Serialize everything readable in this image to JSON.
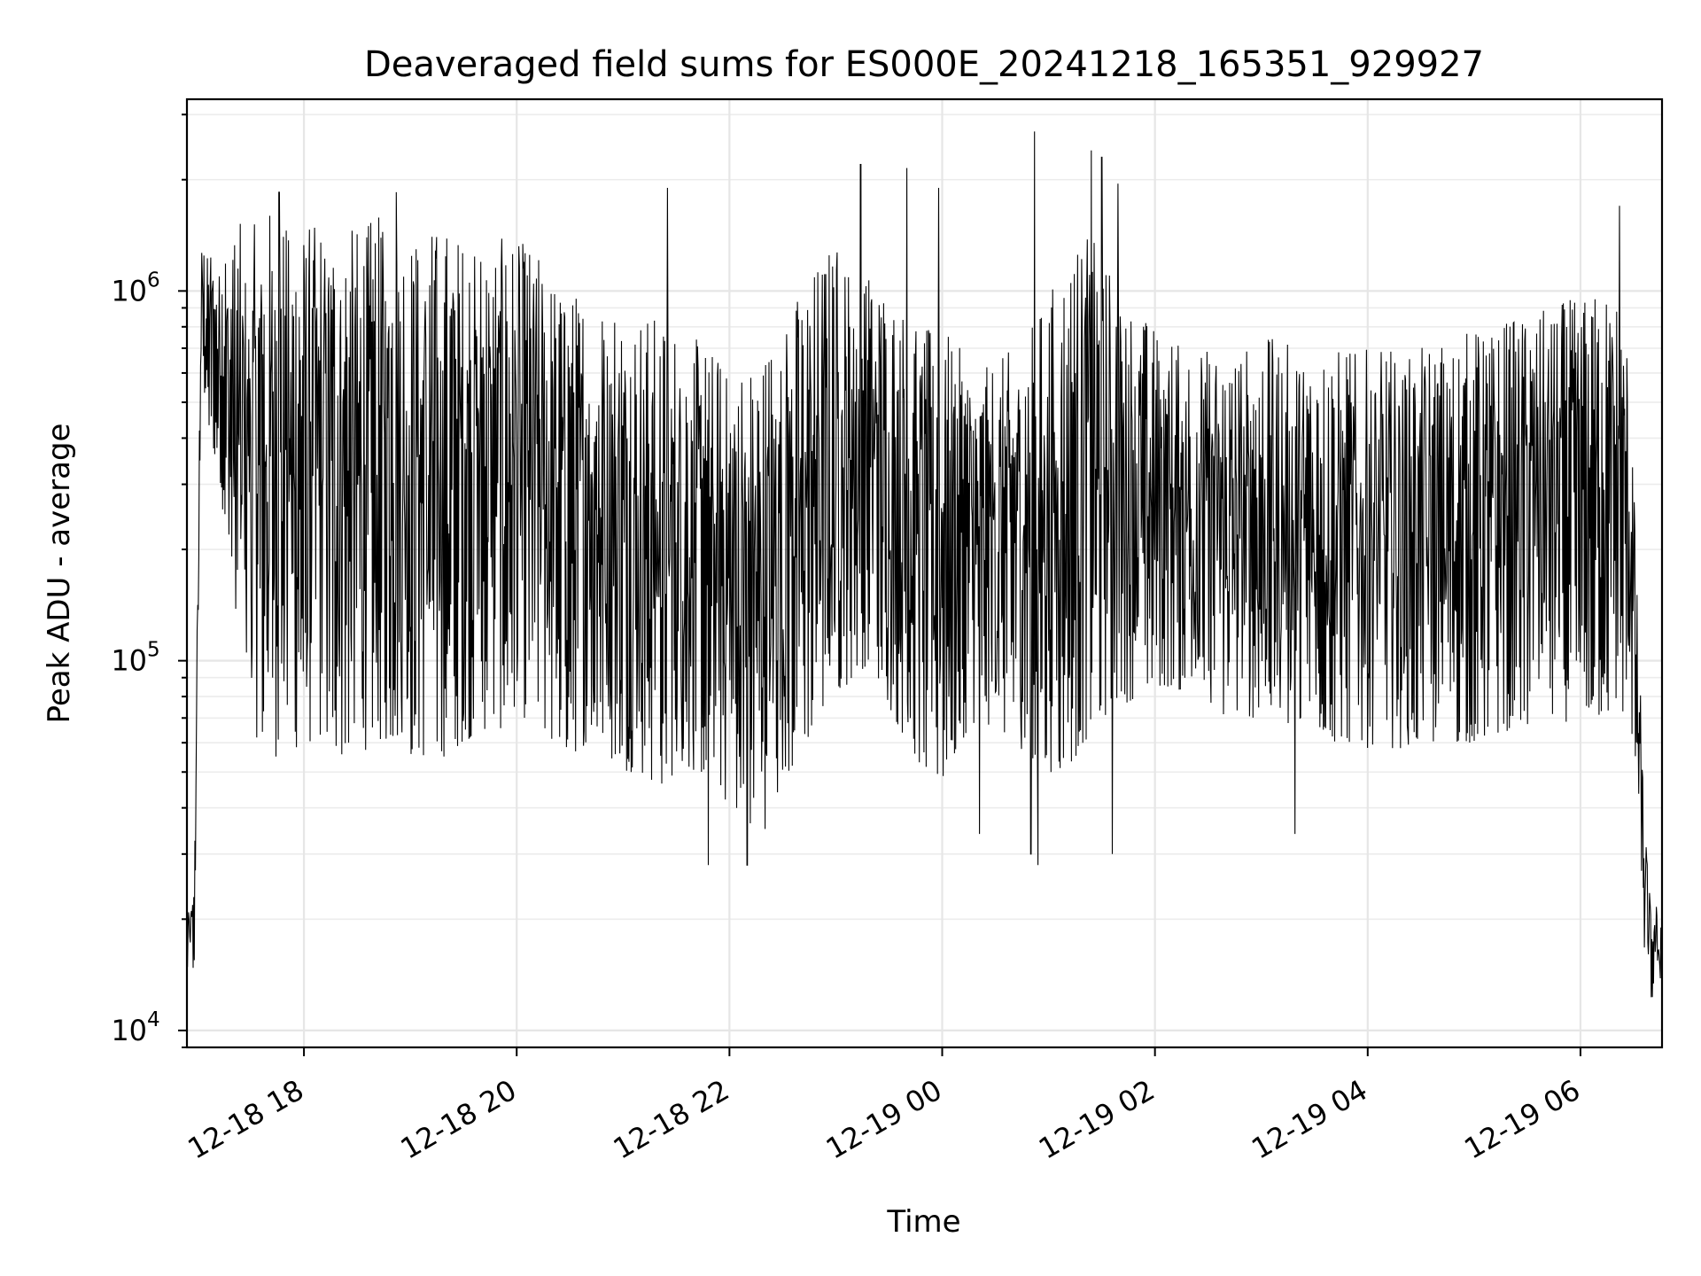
{
  "chart_data": {
    "type": "line",
    "title": "Deaveraged field sums for ES000E_20241218_165351_929927",
    "xlabel": "Time",
    "ylabel": "Peak ADU - average",
    "yscale": "log",
    "ylim": [
      9000,
      3300000
    ],
    "xlim": [
      "2024-12-18T16:54",
      "2024-12-19T06:46"
    ],
    "grid": true,
    "line_color": "#000000",
    "xticks": [
      {
        "value": "2024-12-18T18:00",
        "label": "12-18 18"
      },
      {
        "value": "2024-12-18T20:00",
        "label": "12-18 20"
      },
      {
        "value": "2024-12-18T22:00",
        "label": "12-18 22"
      },
      {
        "value": "2024-12-19T00:00",
        "label": "12-19 00"
      },
      {
        "value": "2024-12-19T02:00",
        "label": "12-19 02"
      },
      {
        "value": "2024-12-19T04:00",
        "label": "12-19 04"
      },
      {
        "value": "2024-12-19T06:00",
        "label": "12-19 06"
      }
    ],
    "yticks": [
      {
        "value": 10000,
        "base": "10",
        "exp": "4"
      },
      {
        "value": 100000,
        "base": "10",
        "exp": "5"
      },
      {
        "value": 1000000,
        "base": "10",
        "exp": "6"
      }
    ],
    "series": [
      {
        "x": [
          "2024-12-18T16:54",
          "2024-12-18T16:56",
          "2024-12-18T16:58",
          "2024-12-18T17:00",
          "2024-12-18T17:02",
          "2024-12-18T17:04",
          "2024-12-18T17:06",
          "2024-12-18T17:08",
          "2024-12-18T17:10",
          "2024-12-18T17:13",
          "2024-12-18T17:16",
          "2024-12-18T17:19",
          "2024-12-18T17:22",
          "2024-12-18T17:25",
          "2024-12-18T17:28",
          "2024-12-18T17:31",
          "2024-12-18T17:34",
          "2024-12-18T17:40",
          "2024-12-18T17:50",
          "2024-12-18T18:00",
          "2024-12-18T18:10",
          "2024-12-18T18:20",
          "2024-12-18T18:30",
          "2024-12-18T18:40",
          "2024-12-18T18:50",
          "2024-12-18T19:00",
          "2024-12-18T19:10",
          "2024-12-18T19:20",
          "2024-12-18T19:30",
          "2024-12-18T19:40",
          "2024-12-18T19:50",
          "2024-12-18T20:00",
          "2024-12-18T20:10",
          "2024-12-18T20:20",
          "2024-12-18T20:30",
          "2024-12-18T20:40",
          "2024-12-18T20:50",
          "2024-12-18T21:00",
          "2024-12-18T21:10",
          "2024-12-18T21:20",
          "2024-12-18T21:30",
          "2024-12-18T21:40",
          "2024-12-18T21:50",
          "2024-12-18T22:00",
          "2024-12-18T22:10",
          "2024-12-18T22:20",
          "2024-12-18T22:30",
          "2024-12-18T22:40",
          "2024-12-18T22:50",
          "2024-12-18T23:00",
          "2024-12-18T23:10",
          "2024-12-18T23:20",
          "2024-12-18T23:30",
          "2024-12-18T23:40",
          "2024-12-18T23:50",
          "2024-12-19T00:00",
          "2024-12-19T00:10",
          "2024-12-19T00:20",
          "2024-12-19T00:30",
          "2024-12-19T00:40",
          "2024-12-19T00:50",
          "2024-12-19T01:00",
          "2024-12-19T01:10",
          "2024-12-19T01:20",
          "2024-12-19T01:30",
          "2024-12-19T01:40",
          "2024-12-19T01:50",
          "2024-12-19T02:00",
          "2024-12-19T02:10",
          "2024-12-19T02:20",
          "2024-12-19T02:30",
          "2024-12-19T02:40",
          "2024-12-19T02:50",
          "2024-12-19T03:00",
          "2024-12-19T03:10",
          "2024-12-19T03:20",
          "2024-12-19T03:30",
          "2024-12-19T03:40",
          "2024-12-19T03:50",
          "2024-12-19T04:00",
          "2024-12-19T04:10",
          "2024-12-19T04:20",
          "2024-12-19T04:30",
          "2024-12-19T04:40",
          "2024-12-19T04:50",
          "2024-12-19T05:00",
          "2024-12-19T05:10",
          "2024-12-19T05:20",
          "2024-12-19T05:30",
          "2024-12-19T05:40",
          "2024-12-19T05:50",
          "2024-12-19T06:00",
          "2024-12-19T06:10",
          "2024-12-19T06:20",
          "2024-12-19T06:28",
          "2024-12-19T06:32",
          "2024-12-19T06:36",
          "2024-12-19T06:40",
          "2024-12-19T06:43",
          "2024-12-19T06:46"
        ],
        "y_high": [
          20000,
          22000,
          25000,
          160000,
          1300000,
          1400000,
          1200000,
          1500000,
          1100000,
          1300000,
          1500000,
          1400000,
          1600000,
          1500000,
          1400000,
          1500000,
          1600000,
          1700000,
          1600000,
          1500000,
          1600000,
          1600000,
          1500000,
          1600000,
          1600000,
          1500000,
          1500000,
          1500000,
          1400000,
          1400000,
          1400000,
          1400000,
          1300000,
          1100000,
          1000000,
          1000000,
          1000000,
          950000,
          900000,
          850000,
          800000,
          750000,
          700000,
          650000,
          650000,
          700000,
          900000,
          1000000,
          1200000,
          1400000,
          1100000,
          1200000,
          1000000,
          900000,
          800000,
          800000,
          700000,
          600000,
          650000,
          700000,
          800000,
          1000000,
          1200000,
          1500000,
          1300000,
          1000000,
          900000,
          800000,
          750000,
          750000,
          700000,
          700000,
          700000,
          750000,
          750000,
          700000,
          700000,
          700000,
          700000,
          700000,
          700000,
          700000,
          700000,
          750000,
          750000,
          800000,
          800000,
          850000,
          900000,
          900000,
          950000,
          950000,
          1000000,
          1000000,
          700000,
          150000,
          40000,
          20000,
          22000,
          20000
        ],
        "y_low": [
          14000,
          15000,
          13000,
          70000,
          600000,
          500000,
          400000,
          380000,
          350000,
          300000,
          200000,
          150000,
          100000,
          90000,
          80000,
          70000,
          60000,
          55000,
          55000,
          60000,
          60000,
          55000,
          55000,
          60000,
          60000,
          55000,
          55000,
          55000,
          60000,
          65000,
          65000,
          70000,
          70000,
          60000,
          55000,
          60000,
          55000,
          50000,
          50000,
          45000,
          50000,
          50000,
          48000,
          40000,
          35000,
          35000,
          45000,
          55000,
          70000,
          80000,
          90000,
          100000,
          75000,
          60000,
          50000,
          45000,
          60000,
          70000,
          65000,
          60000,
          55000,
          50000,
          50000,
          60000,
          70000,
          75000,
          80000,
          85000,
          85000,
          80000,
          75000,
          70000,
          70000,
          70000,
          65000,
          65000,
          65000,
          60000,
          60000,
          58000,
          58000,
          58000,
          58000,
          60000,
          60000,
          60000,
          62000,
          65000,
          65000,
          65000,
          68000,
          70000,
          70000,
          70000,
          70000,
          40000,
          16000,
          12000,
          13000,
          14000
        ]
      }
    ],
    "spikes": [
      {
        "x": "2024-12-18T17:46",
        "y": 1850000
      },
      {
        "x": "2024-12-18T18:52",
        "y": 1850000
      },
      {
        "x": "2024-12-18T21:25",
        "y": 1900000
      },
      {
        "x": "2024-12-18T21:48",
        "y": 28000
      },
      {
        "x": "2024-12-18T22:04",
        "y": 40000
      },
      {
        "x": "2024-12-18T22:10",
        "y": 28000
      },
      {
        "x": "2024-12-18T23:14",
        "y": 2200000
      },
      {
        "x": "2024-12-18T23:40",
        "y": 2150000
      },
      {
        "x": "2024-12-18T23:58",
        "y": 1900000
      },
      {
        "x": "2024-12-19T00:21",
        "y": 34000
      },
      {
        "x": "2024-12-19T00:50",
        "y": 30000
      },
      {
        "x": "2024-12-19T00:52",
        "y": 2700000
      },
      {
        "x": "2024-12-19T00:54",
        "y": 28000
      },
      {
        "x": "2024-12-19T01:24",
        "y": 2400000
      },
      {
        "x": "2024-12-19T01:30",
        "y": 2300000
      },
      {
        "x": "2024-12-19T01:36",
        "y": 30000
      },
      {
        "x": "2024-12-19T01:39",
        "y": 1950000
      },
      {
        "x": "2024-12-19T03:19",
        "y": 34000
      },
      {
        "x": "2024-12-19T06:22",
        "y": 1700000
      }
    ]
  }
}
